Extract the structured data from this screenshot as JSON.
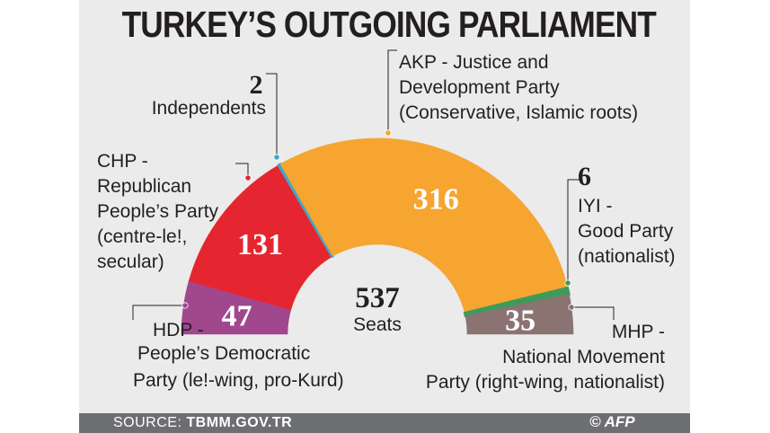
{
  "title": "TURKEY’S OUTGOING PARLIAMENT",
  "source_prefix": "SOURCE:",
  "source_value": "TBMM.GOV.TR",
  "credit": "© AFP",
  "center": {
    "value": "537",
    "label": "Seats"
  },
  "chart_data": {
    "type": "pie",
    "shape": "semicircle-donut",
    "total": 537,
    "series": [
      {
        "name": "HDP",
        "value": 47,
        "color": "#a0478e",
        "show_inside": true,
        "label_lines": [
          "HDP -",
          "People’s Democratic",
          "Party (le!-wing, pro-Kurd)"
        ]
      },
      {
        "name": "CHP",
        "value": 131,
        "color": "#e52630",
        "show_inside": true,
        "label_lines": [
          "CHP -",
          "Republican",
          "People’s Party",
          "(centre-le!,",
          "secular)"
        ]
      },
      {
        "name": "Independents",
        "value": 2,
        "color": "#3fa9c8",
        "show_inside": false,
        "label_lines": [
          "Independents"
        ]
      },
      {
        "name": "AKP",
        "value": 316,
        "color": "#f6a531",
        "show_inside": true,
        "label_lines": [
          "AKP - Justice and",
          "Development Party",
          "(Conservative, Islamic roots)"
        ]
      },
      {
        "name": "IYI",
        "value": 6,
        "color": "#3f9a5a",
        "show_inside": false,
        "label_lines": [
          "IYI -",
          "Good Party",
          "(nationalist)"
        ]
      },
      {
        "name": "MHP",
        "value": 35,
        "color": "#8a7371",
        "show_inside": true,
        "label_lines": [
          "MHP -",
          "National Movement",
          "Party (right-wing, nationalist)"
        ]
      }
    ]
  }
}
